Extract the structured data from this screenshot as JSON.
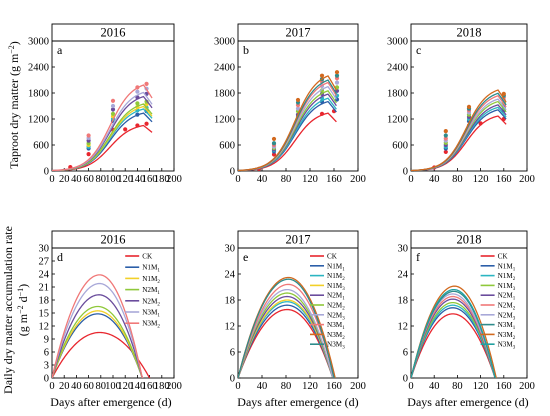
{
  "labels": {
    "ylabel_top": "Taproot dry matter (g m",
    "ylabel_top_sup": "−2",
    "ylabel_top_end": ")",
    "ylabel_bottom_1": "Daily dry matter accumulation rate",
    "ylabel_bottom_2a": "(g m",
    "ylabel_bottom_2sup1": "−2",
    "ylabel_bottom_2mid": " d",
    "ylabel_bottom_2sup2": "−1",
    "ylabel_bottom_2end": ")",
    "xlabel": "Days after emergence (d)"
  },
  "chart_data": [
    {
      "type": "line",
      "year": "2016",
      "letter": "a",
      "row": "top",
      "xlim": [
        0,
        200
      ],
      "ylim": [
        0,
        3000
      ],
      "xticks": [
        0,
        20,
        40,
        60,
        80,
        100,
        120,
        140,
        160,
        180,
        200
      ],
      "yticks": [
        0,
        600,
        1200,
        1800,
        2400,
        3000
      ],
      "series": [
        {
          "color": "#e8262e",
          "max": 1100,
          "points": [
            [
              30,
              90
            ],
            [
              60,
              390
            ],
            [
              100,
              950
            ],
            [
              120,
              960
            ],
            [
              140,
              1050
            ],
            [
              155,
              1090
            ]
          ]
        },
        {
          "color": "#2b5ea8",
          "max": 1400,
          "points": [
            [
              60,
              520
            ],
            [
              100,
              1150
            ],
            [
              140,
              1300
            ],
            [
              155,
              1380
            ]
          ]
        },
        {
          "color": "#2bb5c2",
          "max": 1500,
          "points": [
            [
              60,
              560
            ],
            [
              100,
              1200
            ],
            [
              140,
              1400
            ],
            [
              155,
              1460
            ]
          ]
        },
        {
          "color": "#f2d028",
          "max": 1560,
          "points": [
            [
              60,
              600
            ],
            [
              100,
              1260
            ],
            [
              140,
              1480
            ],
            [
              155,
              1540
            ]
          ]
        },
        {
          "color": "#8fc83a",
          "max": 1620,
          "points": [
            [
              60,
              640
            ],
            [
              100,
              1320
            ],
            [
              140,
              1560
            ],
            [
              155,
              1600
            ]
          ]
        },
        {
          "color": "#6a4c9c",
          "max": 1800,
          "points": [
            [
              60,
              700
            ],
            [
              100,
              1420
            ],
            [
              140,
              1700
            ],
            [
              155,
              1780
            ]
          ]
        },
        {
          "color": "#a8a8d8",
          "max": 1900,
          "points": [
            [
              60,
              760
            ],
            [
              100,
              1500
            ],
            [
              140,
              1830
            ],
            [
              155,
              1900
            ]
          ]
        },
        {
          "color": "#f07878",
          "max": 2080,
          "points": [
            [
              60,
              820
            ],
            [
              100,
              1620
            ],
            [
              140,
              1930
            ],
            [
              155,
              2010
            ]
          ]
        }
      ]
    },
    {
      "type": "line",
      "year": "2017",
      "letter": "b",
      "row": "top",
      "xlim": [
        0,
        200
      ],
      "ylim": [
        0,
        3000
      ],
      "xticks": [
        0,
        40,
        80,
        120,
        160,
        200
      ],
      "yticks": [
        0,
        600,
        1200,
        1800,
        2400,
        3000
      ],
      "series": [
        {
          "color": "#e8262e",
          "max": 1400,
          "points": [
            [
              35,
              50
            ],
            [
              60,
              380
            ],
            [
              100,
              1100
            ],
            [
              140,
              1320
            ],
            [
              160,
              1380
            ]
          ]
        },
        {
          "color": "#2b5ea8",
          "max": 1680,
          "points": [
            [
              60,
              450
            ],
            [
              100,
              1200
            ],
            [
              140,
              1600
            ],
            [
              165,
              1650
            ]
          ]
        },
        {
          "color": "#2bb5c2",
          "max": 1760,
          "points": [
            [
              60,
              480
            ],
            [
              100,
              1260
            ],
            [
              140,
              1680
            ],
            [
              165,
              1740
            ]
          ]
        },
        {
          "color": "#6a4c9c",
          "max": 1860,
          "points": [
            [
              60,
              500
            ],
            [
              100,
              1300
            ],
            [
              140,
              1780
            ],
            [
              165,
              1850
            ]
          ]
        },
        {
          "color": "#8fc83a",
          "max": 1940,
          "points": [
            [
              60,
              530
            ],
            [
              100,
              1380
            ],
            [
              140,
              1860
            ],
            [
              165,
              1930
            ]
          ]
        },
        {
          "color": "#a8a8d8",
          "max": 2040,
          "points": [
            [
              60,
              560
            ],
            [
              100,
              1440
            ],
            [
              140,
              1960
            ],
            [
              165,
              2040
            ]
          ]
        },
        {
          "color": "#f07878",
          "max": 2140,
          "points": [
            [
              60,
              600
            ],
            [
              100,
              1520
            ],
            [
              140,
              2060
            ],
            [
              165,
              2140
            ]
          ]
        },
        {
          "color": "#2e8b8b",
          "max": 2200,
          "points": [
            [
              60,
              640
            ],
            [
              100,
              1580
            ],
            [
              140,
              2120
            ],
            [
              165,
              2200
            ]
          ]
        },
        {
          "color": "#d2691e",
          "max": 2300,
          "points": [
            [
              60,
              740
            ],
            [
              100,
              1640
            ],
            [
              140,
              2200
            ],
            [
              165,
              2280
            ]
          ]
        }
      ]
    },
    {
      "type": "line",
      "year": "2018",
      "letter": "c",
      "row": "top",
      "xlim": [
        0,
        200
      ],
      "ylim": [
        0,
        3000
      ],
      "xticks": [
        0,
        40,
        80,
        120,
        160,
        200
      ],
      "yticks": [
        0,
        600,
        1200,
        1800,
        2400,
        3000
      ],
      "series": [
        {
          "color": "#e8262e",
          "max": 1330,
          "points": [
            [
              40,
              80
            ],
            [
              60,
              440
            ],
            [
              100,
              1050
            ],
            [
              120,
              1100
            ],
            [
              160,
              1200
            ]
          ]
        },
        {
          "color": "#2b5ea8",
          "max": 1480,
          "points": [
            [
              60,
              520
            ],
            [
              100,
              1150
            ],
            [
              160,
              1400
            ]
          ]
        },
        {
          "color": "#2bb5c2",
          "max": 1540,
          "points": [
            [
              60,
              560
            ],
            [
              100,
              1200
            ],
            [
              160,
              1460
            ]
          ]
        },
        {
          "color": "#6a4c9c",
          "max": 1600,
          "points": [
            [
              60,
              600
            ],
            [
              100,
              1250
            ],
            [
              160,
              1520
            ]
          ]
        },
        {
          "color": "#8fc83a",
          "max": 1680,
          "points": [
            [
              60,
              650
            ],
            [
              100,
              1300
            ],
            [
              160,
              1580
            ]
          ]
        },
        {
          "color": "#a8a8d8",
          "max": 1740,
          "points": [
            [
              60,
              700
            ],
            [
              100,
              1350
            ],
            [
              160,
              1640
            ]
          ]
        },
        {
          "color": "#f07878",
          "max": 1820,
          "points": [
            [
              60,
              750
            ],
            [
              100,
              1400
            ],
            [
              160,
              1700
            ]
          ]
        },
        {
          "color": "#2e8b8b",
          "max": 1880,
          "points": [
            [
              60,
              820
            ],
            [
              100,
              1440
            ],
            [
              160,
              1740
            ]
          ]
        },
        {
          "color": "#d2691e",
          "max": 1960,
          "points": [
            [
              60,
              920
            ],
            [
              100,
              1480
            ],
            [
              160,
              1780
            ]
          ]
        }
      ]
    },
    {
      "type": "line",
      "year": "2016",
      "letter": "d",
      "row": "bottom",
      "xlim": [
        0,
        200
      ],
      "ylim": [
        0,
        30
      ],
      "xticks": [
        0,
        20,
        40,
        60,
        80,
        100,
        120,
        140,
        160,
        180,
        200
      ],
      "yticks": [
        0,
        3,
        6,
        9,
        12,
        15,
        18,
        21,
        24,
        27,
        30
      ],
      "series": [
        {
          "name": "CK",
          "color": "#e8262e",
          "peak_x": 78,
          "peak_y": 10.5,
          "end_x": 160
        },
        {
          "name": "N1M1",
          "color": "#2b5ea8",
          "peak_x": 75,
          "peak_y": 14.8,
          "end_x": 148
        },
        {
          "name": "N1M2",
          "color": "#f2d028",
          "peak_x": 75,
          "peak_y": 15.5,
          "end_x": 148
        },
        {
          "name": "N2M1",
          "color": "#8fc83a",
          "peak_x": 75,
          "peak_y": 16.5,
          "end_x": 148
        },
        {
          "name": "N2M2",
          "color": "#6a4c9c",
          "peak_x": 77,
          "peak_y": 19.2,
          "end_x": 148
        },
        {
          "name": "N3M1",
          "color": "#a8a8d8",
          "peak_x": 78,
          "peak_y": 21.8,
          "end_x": 148
        },
        {
          "name": "N3M2",
          "color": "#f07878",
          "peak_x": 78,
          "peak_y": 23.8,
          "end_x": 148
        }
      ]
    },
    {
      "type": "line",
      "year": "2017",
      "letter": "e",
      "row": "bottom",
      "xlim": [
        0,
        200
      ],
      "ylim": [
        0,
        30
      ],
      "xticks": [
        0,
        40,
        80,
        120,
        160,
        200
      ],
      "yticks": [
        0,
        6,
        12,
        18,
        24,
        30
      ],
      "series": [
        {
          "name": "CK",
          "color": "#e8262e",
          "peak_x": 82,
          "peak_y": 15.8,
          "end_x": 158
        },
        {
          "name": "N1M1",
          "color": "#2b5ea8",
          "peak_x": 82,
          "peak_y": 16.8,
          "end_x": 158
        },
        {
          "name": "N1M2",
          "color": "#2bb5c2",
          "peak_x": 82,
          "peak_y": 17.6,
          "end_x": 158
        },
        {
          "name": "N1M3",
          "color": "#f2d028",
          "peak_x": 82,
          "peak_y": 18.0,
          "end_x": 158
        },
        {
          "name": "N2M1",
          "color": "#6a4c9c",
          "peak_x": 82,
          "peak_y": 18.8,
          "end_x": 158
        },
        {
          "name": "N2M2",
          "color": "#8fc83a",
          "peak_x": 82,
          "peak_y": 19.6,
          "end_x": 158
        },
        {
          "name": "N2M3",
          "color": "#a8a8d8",
          "peak_x": 82,
          "peak_y": 20.4,
          "end_x": 158
        },
        {
          "name": "N3M1",
          "color": "#f07878",
          "peak_x": 84,
          "peak_y": 21.6,
          "end_x": 160
        },
        {
          "name": "N3M2",
          "color": "#d2691e",
          "peak_x": 84,
          "peak_y": 23.2,
          "end_x": 162
        },
        {
          "name": "N3M3",
          "color": "#2e8b8b",
          "peak_x": 84,
          "peak_y": 22.8,
          "end_x": 160
        }
      ]
    },
    {
      "type": "line",
      "year": "2018",
      "letter": "f",
      "row": "bottom",
      "xlim": [
        0,
        200
      ],
      "ylim": [
        0,
        30
      ],
      "xticks": [
        0,
        40,
        80,
        120,
        160,
        200
      ],
      "yticks": [
        0,
        6,
        12,
        18,
        24,
        30
      ],
      "series": [
        {
          "name": "CK",
          "color": "#e8262e",
          "peak_x": 72,
          "peak_y": 14.8,
          "end_x": 145
        },
        {
          "name": "N1M1",
          "color": "#2b5ea8",
          "peak_x": 72,
          "peak_y": 16.2,
          "end_x": 145
        },
        {
          "name": "N1M2",
          "color": "#2bb5c2",
          "peak_x": 72,
          "peak_y": 16.8,
          "end_x": 145
        },
        {
          "name": "N1M3",
          "color": "#8fc83a",
          "peak_x": 72,
          "peak_y": 17.4,
          "end_x": 145
        },
        {
          "name": "N2M1",
          "color": "#6a4c9c",
          "peak_x": 72,
          "peak_y": 18.2,
          "end_x": 145
        },
        {
          "name": "N2M2",
          "color": "#f07878",
          "peak_x": 72,
          "peak_y": 18.8,
          "end_x": 145
        },
        {
          "name": "N2M3",
          "color": "#a8a8d8",
          "peak_x": 72,
          "peak_y": 19.4,
          "end_x": 145
        },
        {
          "name": "N3M1",
          "color": "#2e8b8b",
          "peak_x": 74,
          "peak_y": 20.0,
          "end_x": 145
        },
        {
          "name": "N3M2",
          "color": "#d2691e",
          "peak_x": 75,
          "peak_y": 21.2,
          "end_x": 147
        },
        {
          "name": "N3M3",
          "color": "#20a0a0",
          "peak_x": 74,
          "peak_y": 20.4,
          "end_x": 145
        }
      ]
    }
  ]
}
